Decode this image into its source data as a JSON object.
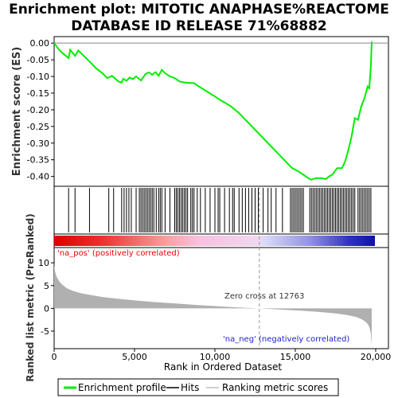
{
  "chart_data": {
    "type": "line",
    "title_lines": [
      "Enrichment plot: MITOTIC ANAPHASE%REACTOME",
      "DATABASE ID RELEASE 71%68882"
    ],
    "es_panel": {
      "ylabel": "Enrichment score (ES)",
      "ylim": [
        -0.42,
        0.01
      ],
      "yticks": [
        0.0,
        -0.05,
        -0.1,
        -0.15,
        -0.2,
        -0.25,
        -0.3,
        -0.35,
        -0.4
      ],
      "ytick_labels": [
        "0.00",
        "-0.05",
        "-0.10",
        "-0.15",
        "-0.20",
        "-0.25",
        "-0.30",
        "-0.35",
        "-0.40"
      ],
      "series": {
        "name": "Enrichment profile",
        "color": "#00ee00",
        "x": [
          0,
          400,
          900,
          1000,
          1300,
          1500,
          2200,
          2600,
          3000,
          3300,
          3600,
          4000,
          4200,
          4300,
          4500,
          4700,
          4900,
          5100,
          5400,
          5700,
          5900,
          6100,
          6300,
          6500,
          6700,
          6900,
          7200,
          7500,
          7800,
          8100,
          8500,
          8700,
          9000,
          9500,
          10000,
          10300,
          10600,
          11000,
          11500,
          12000,
          12500,
          13000,
          13500,
          14000,
          14500,
          14800,
          15200,
          15500,
          15800,
          16000,
          16300,
          16600,
          16900,
          17100,
          17300,
          17600,
          17900,
          18100,
          18300,
          18500,
          18700,
          18900,
          19100,
          19300,
          19500,
          19600,
          19700,
          19750
        ],
        "values": [
          0.0,
          -0.025,
          -0.045,
          -0.02,
          -0.038,
          -0.022,
          -0.055,
          -0.075,
          -0.09,
          -0.105,
          -0.098,
          -0.115,
          -0.118,
          -0.107,
          -0.113,
          -0.103,
          -0.108,
          -0.1,
          -0.112,
          -0.092,
          -0.088,
          -0.095,
          -0.087,
          -0.098,
          -0.08,
          -0.09,
          -0.1,
          -0.105,
          -0.115,
          -0.118,
          -0.12,
          -0.12,
          -0.13,
          -0.145,
          -0.16,
          -0.17,
          -0.178,
          -0.19,
          -0.21,
          -0.235,
          -0.26,
          -0.285,
          -0.31,
          -0.335,
          -0.36,
          -0.375,
          -0.385,
          -0.395,
          -0.405,
          -0.41,
          -0.405,
          -0.405,
          -0.408,
          -0.4,
          -0.395,
          -0.375,
          -0.375,
          -0.355,
          -0.32,
          -0.28,
          -0.225,
          -0.23,
          -0.19,
          -0.165,
          -0.13,
          -0.135,
          -0.07,
          0.005
        ]
      }
    },
    "hits_panel": {
      "legend_name": "Hits",
      "hit_positions": [
        900,
        1300,
        2200,
        3400,
        3700,
        4200,
        4350,
        4500,
        4650,
        4800,
        5100,
        5300,
        5400,
        5500,
        5600,
        5700,
        5800,
        5900,
        6000,
        6100,
        6200,
        6350,
        6500,
        6600,
        6700,
        6900,
        7200,
        7500,
        7600,
        7700,
        7800,
        7900,
        8000,
        8100,
        8200,
        8300,
        8500,
        8600,
        8700,
        8900,
        9100,
        9400,
        9700,
        10000,
        10200,
        10300,
        10600,
        10900,
        11100,
        11200,
        11500,
        11700,
        11900,
        12100,
        12300,
        12500,
        12700,
        13000,
        13300,
        13500,
        13800,
        14200,
        14700,
        14800,
        14900,
        15000,
        15100,
        15200,
        15300,
        15400,
        15500,
        15900,
        16000,
        16100,
        16200,
        16300,
        16400,
        16500,
        16600,
        16700,
        16800,
        16900,
        17000,
        17100,
        17200,
        17300,
        17400,
        17500,
        17600,
        17700,
        17800,
        17900,
        18000,
        18100,
        18200,
        18300,
        18400,
        18500,
        18600,
        18700,
        18900,
        19000,
        19100,
        19200,
        19300,
        19400,
        19500,
        19600,
        19700
      ]
    },
    "metric_panel": {
      "ylabel": "Ranked list metric (PreRanked)",
      "xlabel": "Rank in Ordered Dataset",
      "xlim": [
        0,
        20000
      ],
      "xticks": [
        0,
        5000,
        10000,
        15000,
        20000
      ],
      "xtick_labels": [
        "0",
        "5,000",
        "10,000",
        "15,000",
        "20,000"
      ],
      "ylim": [
        -8.5,
        13
      ],
      "yticks": [
        10,
        5,
        0,
        -5
      ],
      "ytick_labels": [
        "10",
        "5",
        "0",
        "-5"
      ],
      "profile_x": [
        0,
        50,
        150,
        300,
        500,
        800,
        1200,
        1700,
        2300,
        3000,
        4000,
        5000,
        6000,
        7000,
        8000,
        9000,
        10000,
        11000,
        12000,
        12763,
        13500,
        14500,
        15500,
        16500,
        17500,
        18200,
        18800,
        19200,
        19450,
        19600,
        19700,
        19750
      ],
      "profile_y": [
        9.6,
        8.2,
        7.0,
        6.0,
        5.2,
        4.4,
        3.8,
        3.3,
        2.9,
        2.5,
        2.1,
        1.75,
        1.45,
        1.2,
        0.95,
        0.7,
        0.5,
        0.3,
        0.12,
        0.0,
        -0.15,
        -0.35,
        -0.55,
        -0.8,
        -1.1,
        -1.45,
        -1.9,
        -2.5,
        -3.2,
        -4.0,
        -5.5,
        -8.2
      ],
      "zero_cross_label": "Zero cross at 12763",
      "zero_cross": 12763,
      "pos_label": "'na_pos' (positively correlated)",
      "neg_label": "'na_neg' (negatively correlated)",
      "pos_color": "#ee0000",
      "neg_color": "#2222cc",
      "fill_color": "#b0b0b0"
    },
    "legend": {
      "items": [
        "Enrichment profile",
        "Hits",
        "Ranking metric scores"
      ]
    }
  }
}
